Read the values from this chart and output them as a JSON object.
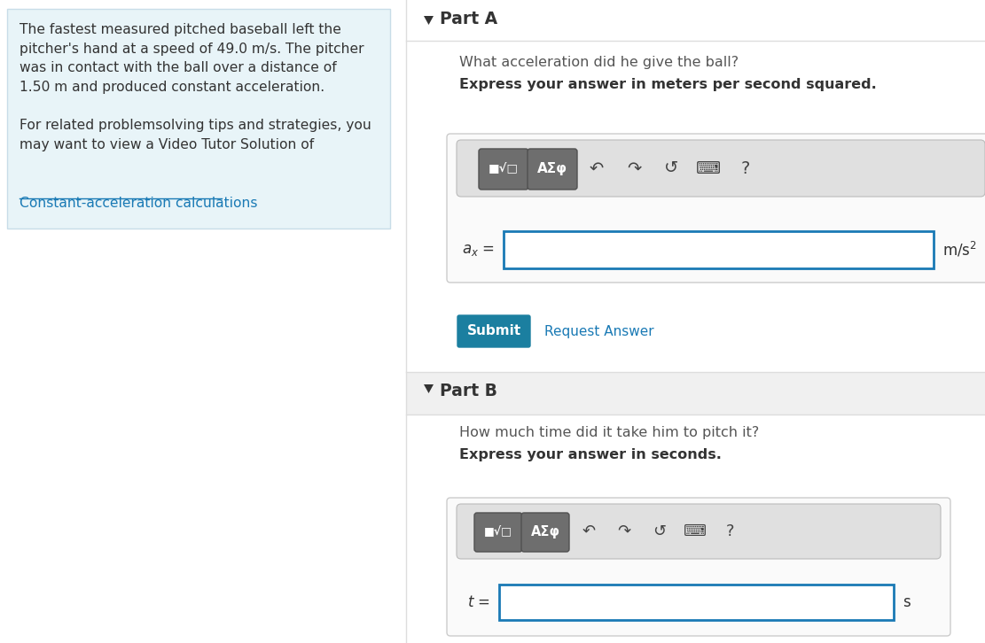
{
  "bg_color": "#ffffff",
  "left_panel_bg": "#e8f4f8",
  "part_a_header": "Part A",
  "part_a_question": "What acceleration did he give the ball?",
  "part_a_bold": "Express your answer in meters per second squared.",
  "part_b_header": "Part B",
  "part_b_question": "How much time did it take him to pitch it?",
  "part_b_bold": "Express your answer in seconds.",
  "submit_color": "#1b7fa0",
  "submit_text": "Submit",
  "request_answer_text": "Request Answer",
  "link_color": "#1a7ab5",
  "text_color": "#555555",
  "dark_text": "#333333",
  "toolbar_bg": "#e0e0e0",
  "input_border": "#1a7ab5",
  "header_bg": "#f0f0f0",
  "triangle_color": "#333333",
  "divider_color": "#dddddd"
}
